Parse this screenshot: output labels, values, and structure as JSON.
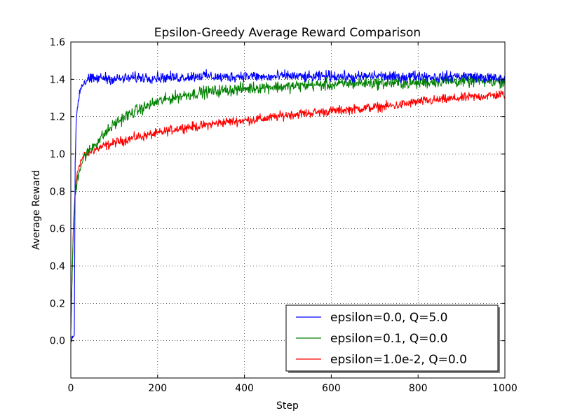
{
  "chart_data": {
    "type": "line",
    "title": "Epsilon-Greedy Average Reward Comparison",
    "xlabel": "Step",
    "ylabel": "Average Reward",
    "xlim": [
      0,
      1000
    ],
    "ylim": [
      -0.2,
      1.6
    ],
    "xticks": [
      "0",
      "200",
      "400",
      "600",
      "800",
      "1000"
    ],
    "yticks": [
      "0.0",
      "0.2",
      "0.4",
      "0.6",
      "0.8",
      "1.0",
      "1.2",
      "1.4",
      "1.6"
    ],
    "grid": true,
    "legend_position": "lower-right",
    "series": [
      {
        "name": "epsilon=0.0, Q=5.0",
        "color": "#0000ff",
        "x": [
          0,
          3,
          5,
          8,
          10,
          12,
          15,
          20,
          25,
          30,
          40,
          50,
          75,
          100,
          150,
          200,
          250,
          300,
          350,
          400,
          450,
          500,
          550,
          600,
          650,
          700,
          750,
          800,
          850,
          900,
          950,
          1000
        ],
        "y": [
          0.0,
          0.02,
          0.01,
          0.03,
          0.95,
          1.15,
          1.25,
          1.33,
          1.37,
          1.38,
          1.4,
          1.4,
          1.41,
          1.4,
          1.41,
          1.41,
          1.41,
          1.42,
          1.41,
          1.42,
          1.41,
          1.42,
          1.41,
          1.42,
          1.41,
          1.42,
          1.41,
          1.42,
          1.41,
          1.42,
          1.41,
          1.4
        ],
        "noise": 0.025
      },
      {
        "name": "epsilon=0.1, Q=0.0",
        "color": "#008000",
        "x": [
          0,
          3,
          6,
          10,
          15,
          20,
          30,
          50,
          75,
          100,
          125,
          150,
          200,
          250,
          300,
          350,
          400,
          450,
          500,
          550,
          600,
          650,
          700,
          750,
          800,
          850,
          900,
          950,
          1000
        ],
        "y": [
          0.05,
          0.35,
          0.6,
          0.78,
          0.87,
          0.92,
          0.98,
          1.04,
          1.1,
          1.16,
          1.2,
          1.23,
          1.28,
          1.31,
          1.33,
          1.34,
          1.35,
          1.36,
          1.36,
          1.37,
          1.37,
          1.38,
          1.38,
          1.38,
          1.38,
          1.39,
          1.39,
          1.39,
          1.39
        ],
        "noise": 0.028
      },
      {
        "name": "epsilon=1.0e-2, Q=0.0",
        "color": "#ff0000",
        "x": [
          0,
          3,
          6,
          10,
          15,
          20,
          30,
          50,
          75,
          100,
          150,
          200,
          250,
          300,
          350,
          400,
          450,
          500,
          550,
          600,
          650,
          700,
          750,
          800,
          850,
          900,
          950,
          1000
        ],
        "y": [
          0.05,
          0.35,
          0.62,
          0.8,
          0.9,
          0.95,
          0.99,
          1.02,
          1.04,
          1.06,
          1.09,
          1.11,
          1.14,
          1.15,
          1.17,
          1.18,
          1.19,
          1.21,
          1.22,
          1.23,
          1.24,
          1.25,
          1.26,
          1.28,
          1.29,
          1.3,
          1.31,
          1.32
        ],
        "noise": 0.022
      }
    ]
  }
}
